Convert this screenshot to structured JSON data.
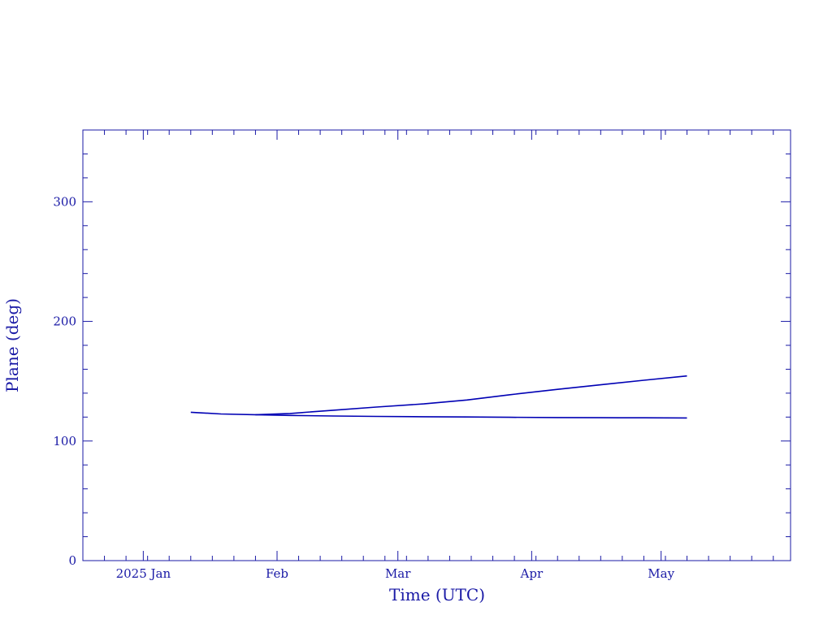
{
  "chart_data": {
    "type": "line",
    "title": "",
    "xlabel": "Time (UTC)",
    "ylabel": "Plane (deg)",
    "x_type": "date",
    "xlim": [
      "2024-12-18",
      "2025-05-31"
    ],
    "ylim": [
      0,
      360
    ],
    "x_ticks": [
      {
        "date": "2025-01-01",
        "label": "2025 Jan"
      },
      {
        "date": "2025-02-01",
        "label": "Feb"
      },
      {
        "date": "2025-03-01",
        "label": "Mar"
      },
      {
        "date": "2025-04-01",
        "label": "Apr"
      },
      {
        "date": "2025-05-01",
        "label": "May"
      }
    ],
    "y_ticks": [
      {
        "value": 0,
        "label": "0"
      },
      {
        "value": 100,
        "label": "100"
      },
      {
        "value": 200,
        "label": "200"
      },
      {
        "value": 300,
        "label": "300"
      }
    ],
    "grid": false,
    "legend": "none",
    "line_color": "#0000b4",
    "axis_color": "#1a1aa6",
    "series": [
      {
        "x": [
          "2025-01-12",
          "2025-01-19",
          "2025-01-27",
          "2025-02-04",
          "2025-02-14",
          "2025-02-24",
          "2025-03-07",
          "2025-03-17",
          "2025-03-27",
          "2025-04-07",
          "2025-04-17",
          "2025-04-27",
          "2025-05-07"
        ],
        "values": [
          124,
          122.6,
          122,
          123,
          125.7,
          128.4,
          131,
          134.3,
          138.7,
          143.2,
          147,
          150.8,
          154.4
        ]
      },
      {
        "x": [
          "2025-01-27",
          "2025-02-04",
          "2025-02-14",
          "2025-02-24",
          "2025-03-07",
          "2025-03-17",
          "2025-03-27",
          "2025-04-07",
          "2025-04-17",
          "2025-04-27",
          "2025-05-07"
        ],
        "values": [
          122,
          121.4,
          120.9,
          120.6,
          120.3,
          120.1,
          119.8,
          119.6,
          119.5,
          119.4,
          119.3
        ]
      }
    ]
  }
}
